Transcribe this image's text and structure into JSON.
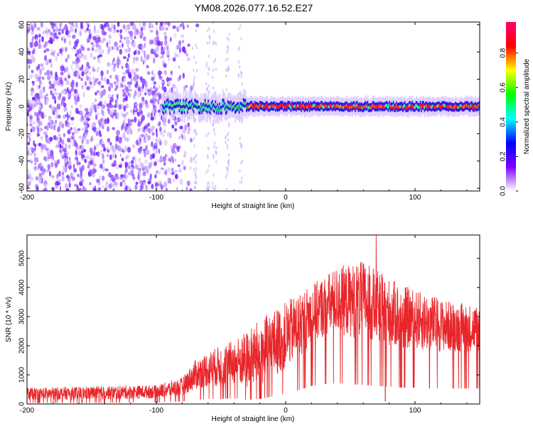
{
  "title": "YM08.2026.077.16.52.E27",
  "charts": [
    {
      "type": "heatmap",
      "name": "spectrogram",
      "xlabel": "Height of straight line (km)",
      "ylabel": "Frequency (Hz)",
      "xlim": [
        -200,
        150
      ],
      "ylim": [
        -62,
        62
      ],
      "xticks": [
        -200,
        -100,
        0,
        100
      ],
      "yticks": [
        -60,
        -40,
        -20,
        0,
        20,
        40,
        60
      ],
      "description_note": "noise speckle for x < -80; narrow band centred near 0 Hz for x > -95",
      "band": {
        "x_start": -95,
        "x_end": 150,
        "center_hz": 0,
        "halfwidth_hz": 5
      },
      "noise_region": {
        "x_start": -200,
        "x_end": -80
      },
      "streaks_x": [
        -70,
        -60,
        -55,
        -45,
        -35
      ]
    },
    {
      "type": "line",
      "name": "snr",
      "xlabel": "Height of straight line (km)",
      "ylabel": "SNR (10 * v/v)",
      "xlim": [
        -200,
        150
      ],
      "ylim": [
        0,
        5800
      ],
      "xticks": [
        -200,
        -100,
        0,
        100
      ],
      "yticks": [
        0,
        1000,
        2000,
        3000,
        4000,
        5000
      ],
      "color": "#e8262a",
      "envelope": {
        "x": [
          -200,
          -150,
          -100,
          -80,
          -70,
          -60,
          -50,
          -40,
          -30,
          -20,
          -10,
          0,
          10,
          20,
          30,
          40,
          50,
          60,
          70,
          80,
          90,
          100,
          110,
          120,
          130,
          150
        ],
        "low": [
          150,
          150,
          200,
          300,
          500,
          600,
          600,
          700,
          500,
          600,
          900,
          1200,
          1600,
          2100,
          2300,
          2400,
          2300,
          2200,
          2100,
          2000,
          1900,
          1900,
          1800,
          1800,
          1800,
          1800
        ],
        "high": [
          550,
          600,
          650,
          900,
          1500,
          1800,
          2000,
          2200,
          2500,
          2900,
          3200,
          3500,
          3800,
          4100,
          4400,
          4700,
          4800,
          4900,
          4600,
          4300,
          4100,
          3900,
          3800,
          3600,
          3500,
          3400
        ]
      },
      "peak": {
        "x": 70,
        "y": 5800
      },
      "dip": {
        "x": 77,
        "y": 100
      }
    }
  ],
  "colorbar": {
    "label": "Normalized spectral amplitude",
    "ticks": [
      "0.0",
      "0.2",
      "0.4",
      "0.6",
      "0.8"
    ],
    "tick_values": [
      0.0,
      0.2,
      0.4,
      0.6,
      0.8
    ],
    "range": [
      0,
      0.98
    ],
    "colors": [
      "#ffffff",
      "#7b00ff",
      "#0000ff",
      "#00ffff",
      "#00ff00",
      "#ffff00",
      "#ff0000",
      "#ff0066"
    ]
  }
}
